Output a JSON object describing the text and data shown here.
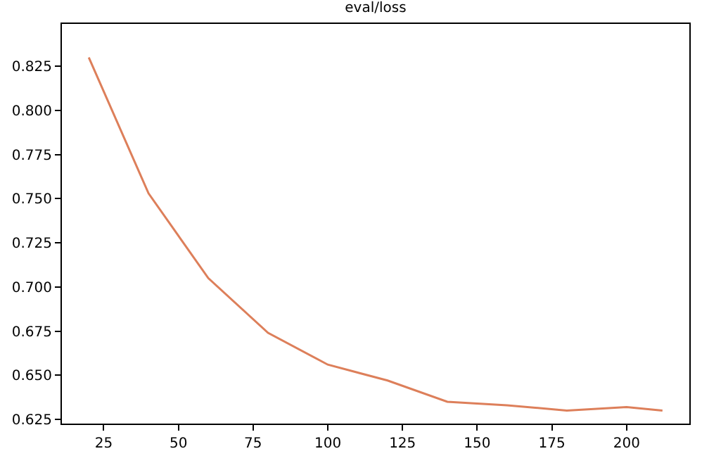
{
  "chart_data": {
    "type": "line",
    "title": "eval/loss",
    "x": [
      20,
      40,
      60,
      80,
      100,
      120,
      140,
      160,
      180,
      200,
      212
    ],
    "series": [
      {
        "color": "#dd7f5a",
        "values": [
          0.83,
          0.753,
          0.705,
          0.674,
          0.656,
          0.647,
          0.635,
          0.633,
          0.63,
          0.632,
          0.63
        ]
      }
    ],
    "xlim": [
      11,
      221
    ],
    "xticks": [
      25,
      50,
      75,
      100,
      125,
      150,
      175,
      200
    ],
    "ylim": [
      0.6226,
      0.849
    ],
    "yticks": [
      {
        "value": 0.625,
        "label": "0.625"
      },
      {
        "value": 0.65,
        "label": "0.650"
      },
      {
        "value": 0.675,
        "label": "0.675"
      },
      {
        "value": 0.7,
        "label": "0.700"
      },
      {
        "value": 0.725,
        "label": "0.725"
      },
      {
        "value": 0.75,
        "label": "0.750"
      },
      {
        "value": 0.775,
        "label": "0.775"
      },
      {
        "value": 0.8,
        "label": "0.800"
      },
      {
        "value": 0.825,
        "label": "0.825"
      }
    ],
    "marker": "none",
    "line_style": "solid"
  }
}
